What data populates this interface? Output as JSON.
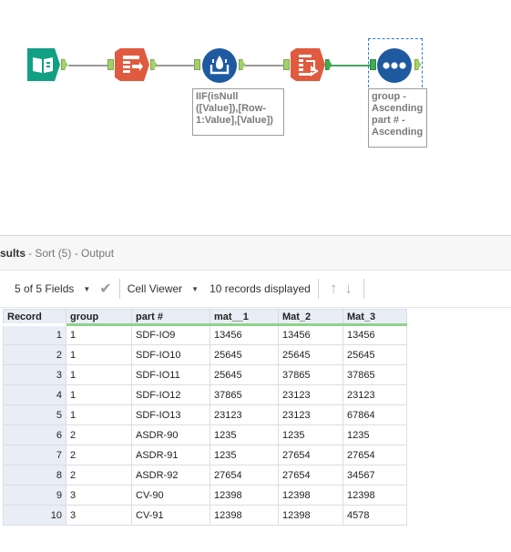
{
  "workflow": {
    "annotations": {
      "formula": [
        "IIF(isNull",
        "([Value]),[Row-",
        "1:Value],[Value])"
      ],
      "sort": [
        "group -",
        "Ascending",
        "part # -",
        "Ascending"
      ]
    },
    "colors": {
      "input": "#12a085",
      "select": "#e05a3f",
      "formula": "#1f5aa0",
      "sort": "#e05a3f"
    }
  },
  "results": {
    "title_bold": "sults",
    "title_rest": "- Sort (5) - Output",
    "toolbar": {
      "fields": "5 of 5 Fields",
      "viewer": "Cell Viewer",
      "records": "10 records displayed"
    },
    "columns": [
      "Record",
      "group",
      "part #",
      "mat__1",
      "Mat_2",
      "Mat_3"
    ],
    "rows": [
      [
        "1",
        "1",
        "SDF-IO9",
        "13456",
        "13456",
        "13456"
      ],
      [
        "2",
        "1",
        "SDF-IO10",
        "25645",
        "25645",
        "25645"
      ],
      [
        "3",
        "1",
        "SDF-IO11",
        "25645",
        "37865",
        "37865"
      ],
      [
        "4",
        "1",
        "SDF-IO12",
        "37865",
        "23123",
        "23123"
      ],
      [
        "5",
        "1",
        "SDF-IO13",
        "23123",
        "23123",
        "67864"
      ],
      [
        "6",
        "2",
        "ASDR-90",
        "1235",
        "1235",
        "1235"
      ],
      [
        "7",
        "2",
        "ASDR-91",
        "1235",
        "27654",
        "27654"
      ],
      [
        "8",
        "2",
        "ASDR-92",
        "27654",
        "27654",
        "34567"
      ],
      [
        "9",
        "3",
        "CV-90",
        "12398",
        "12398",
        "12398"
      ],
      [
        "10",
        "3",
        "CV-91",
        "12398",
        "12398",
        "4578"
      ]
    ]
  }
}
